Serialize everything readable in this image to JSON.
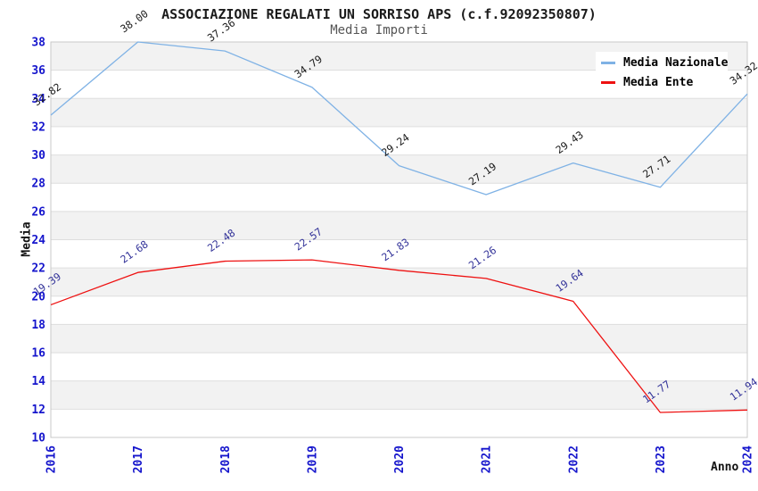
{
  "chart_data": {
    "type": "line",
    "title": "ASSOCIAZIONE REGALATI UN SORRISO APS (c.f.92092350807)",
    "subtitle": "Media Importi",
    "xlabel": "Anno",
    "ylabel": "Media",
    "categories": [
      "2016",
      "2017",
      "2018",
      "2019",
      "2020",
      "2021",
      "2022",
      "2023",
      "2024"
    ],
    "series": [
      {
        "name": "Media Nazionale",
        "color": "#7fb2e5",
        "label_color": "#1a1a1a",
        "values": [
          32.82,
          38.0,
          37.36,
          34.79,
          29.24,
          27.19,
          29.43,
          27.71,
          34.32
        ]
      },
      {
        "name": "Media Ente",
        "color": "#ee1111",
        "label_color": "#333399",
        "values": [
          19.39,
          21.68,
          22.48,
          22.57,
          21.83,
          21.26,
          19.64,
          11.77,
          11.94
        ]
      }
    ],
    "ylim": [
      10,
      38
    ],
    "ytick_step": 2,
    "grid": true,
    "band_color": "#f2f2f2",
    "grid_color": "#dedede",
    "frame_color": "#c9c9c9",
    "tick_label_color": "#1515cc",
    "legend_position": "top-right",
    "value_label_decimals": 2
  }
}
